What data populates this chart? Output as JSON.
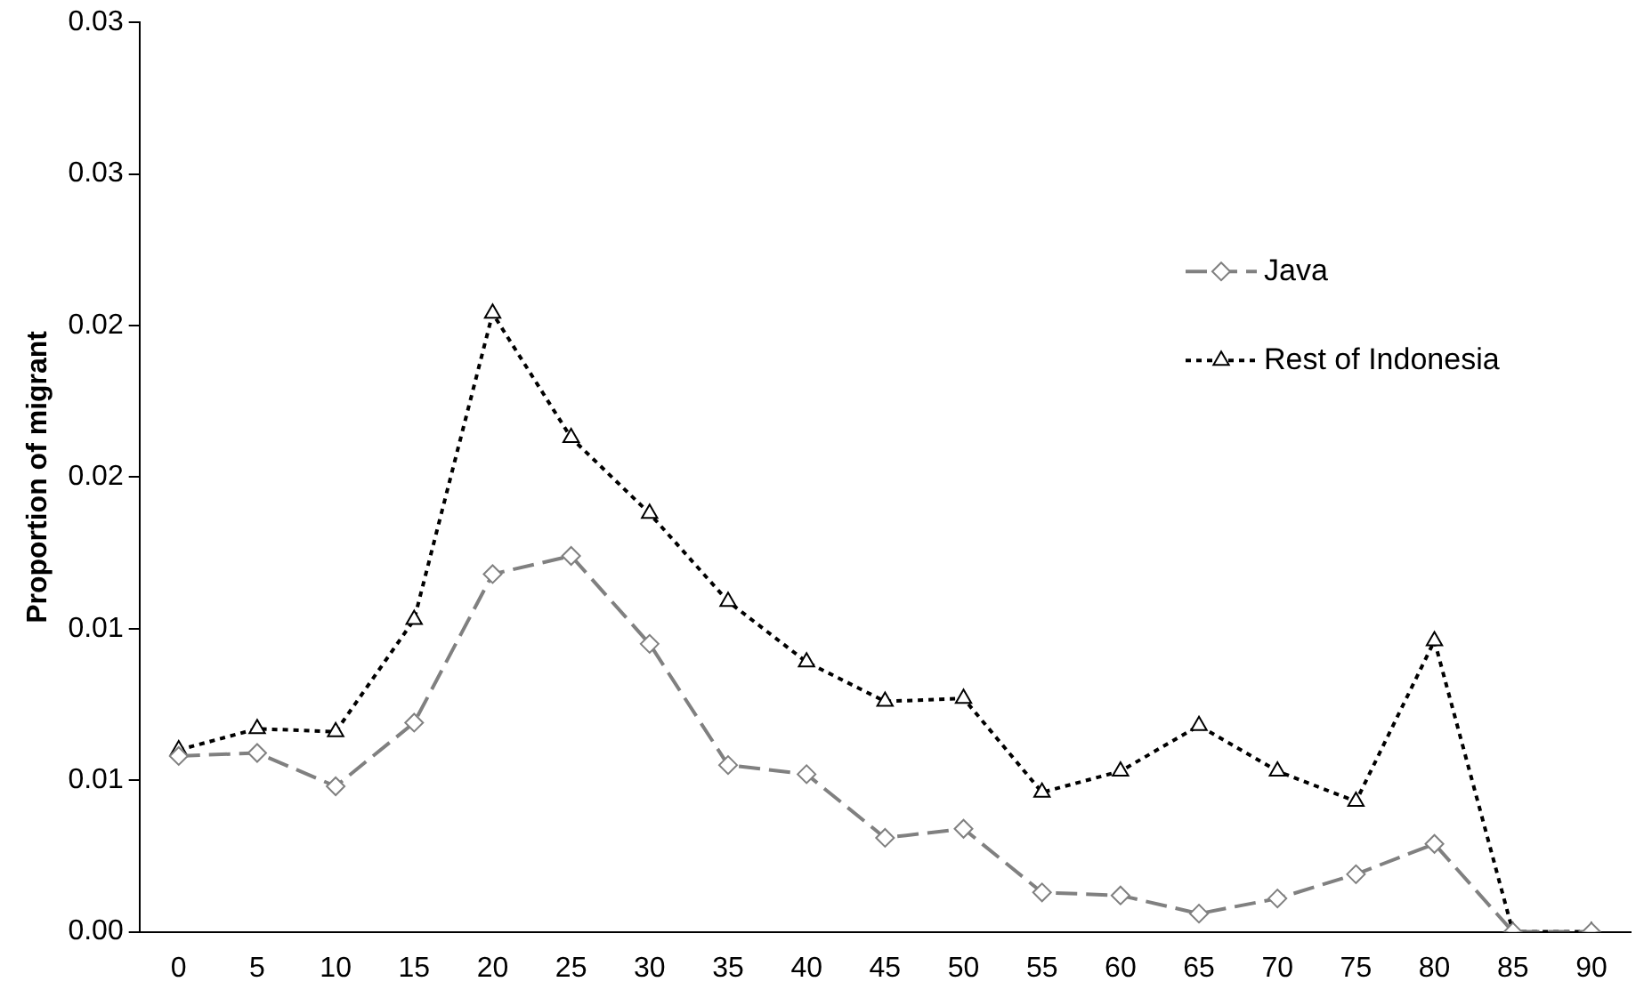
{
  "chart_data": {
    "type": "line",
    "ylabel": "Proportion of migrant",
    "categories": [
      "0",
      "5",
      "10",
      "15",
      "20",
      "25",
      "30",
      "35",
      "40",
      "45",
      "50",
      "55",
      "60",
      "65",
      "70",
      "75",
      "80",
      "85",
      "90"
    ],
    "ylim": [
      0,
      0.03
    ],
    "yticks": [
      {
        "value": 0,
        "label": "0.00"
      },
      {
        "value": 0.005,
        "label": "0.01"
      },
      {
        "value": 0.01,
        "label": "0.01"
      },
      {
        "value": 0.015,
        "label": "0.02"
      },
      {
        "value": 0.02,
        "label": "0.02"
      },
      {
        "value": 0.025,
        "label": "0.03"
      },
      {
        "value": 0.03,
        "label": "0.03"
      }
    ],
    "grid": false,
    "legend": "top right",
    "series": [
      {
        "name": "Java",
        "color": "#808080",
        "line_style": "dashed",
        "marker": "diamond",
        "values": [
          0.0058,
          0.0059,
          0.0048,
          0.0069,
          0.0118,
          0.0124,
          0.0095,
          0.0055,
          0.0052,
          0.0031,
          0.0034,
          0.0013,
          0.0012,
          0.0006,
          0.0011,
          0.0019,
          0.0029,
          0,
          0
        ]
      },
      {
        "name": "Rest of Indonesia",
        "color": "#000000",
        "line_style": "dotted",
        "marker": "triangle",
        "values": [
          0.006,
          0.0067,
          0.0066,
          0.0103,
          0.0204,
          0.0163,
          0.0138,
          0.0109,
          0.0089,
          0.0076,
          0.0077,
          0.0046,
          0.0053,
          0.0068,
          0.0053,
          0.0043,
          0.0096,
          0,
          0
        ]
      }
    ]
  }
}
